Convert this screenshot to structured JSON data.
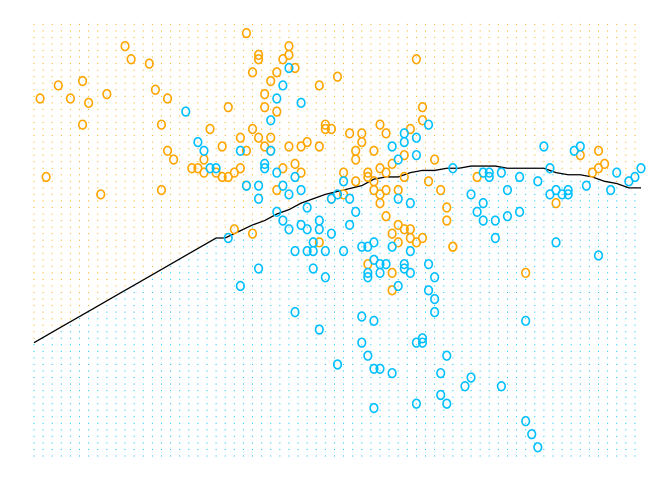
{
  "chart_data": {
    "type": "scatter",
    "title": "",
    "xlabel": "",
    "ylabel": "",
    "xlim": [
      0,
      100
    ],
    "ylim": [
      0,
      100
    ],
    "grid": false,
    "legend": "none",
    "marker": "o",
    "colors": {
      "class_0": "#FFA500",
      "class_1": "#00BFFF",
      "boundary": "#000000"
    },
    "background_grid": {
      "step": 1.5,
      "region_colors": {
        "above": "#FFA500",
        "below": "#00BFFF"
      }
    },
    "decision_boundary": {
      "x": [
        0,
        5,
        10,
        15,
        20,
        25,
        30,
        31.5,
        33,
        36,
        38,
        40,
        42,
        44,
        46,
        48,
        51,
        54,
        56,
        58,
        60,
        62,
        64,
        66,
        68,
        70,
        72,
        74,
        76,
        78,
        80,
        82,
        84,
        86,
        88,
        90,
        92,
        94,
        96,
        98,
        100
      ],
      "y": [
        26,
        30,
        34,
        38,
        42,
        46,
        50,
        50,
        51,
        53,
        54,
        55.5,
        56.5,
        58,
        59,
        60,
        61,
        62,
        63.5,
        64,
        64,
        65,
        65.5,
        65.5,
        66,
        66,
        66.5,
        66.5,
        66.5,
        66,
        66,
        66,
        66,
        65,
        64.5,
        64.5,
        64,
        63,
        62.5,
        61.5,
        61.5
      ]
    },
    "series": [
      {
        "class": 0,
        "color": "#FFA500",
        "points": [
          [
            1,
            82
          ],
          [
            2,
            64
          ],
          [
            4,
            85
          ],
          [
            6,
            82
          ],
          [
            8,
            86
          ],
          [
            8,
            76
          ],
          [
            9,
            81
          ],
          [
            11,
            60
          ],
          [
            12,
            83
          ],
          [
            15,
            94
          ],
          [
            16,
            91
          ],
          [
            19,
            90
          ],
          [
            20,
            84
          ],
          [
            21,
            76
          ],
          [
            21,
            61
          ],
          [
            22,
            70
          ],
          [
            22,
            82
          ],
          [
            23,
            68
          ],
          [
            26,
            66
          ],
          [
            27,
            66
          ],
          [
            28,
            68
          ],
          [
            28,
            65
          ],
          [
            29,
            75
          ],
          [
            30,
            65
          ],
          [
            31,
            64
          ],
          [
            31,
            71
          ],
          [
            32,
            64
          ],
          [
            32,
            80
          ],
          [
            33,
            52
          ],
          [
            33,
            65
          ],
          [
            34,
            73
          ],
          [
            34,
            66
          ],
          [
            35,
            97
          ],
          [
            35,
            62
          ],
          [
            35,
            70
          ],
          [
            36,
            75
          ],
          [
            36,
            88
          ],
          [
            36,
            51
          ],
          [
            37,
            92
          ],
          [
            37,
            73
          ],
          [
            37,
            91
          ],
          [
            38,
            71
          ],
          [
            38,
            83
          ],
          [
            38,
            80
          ],
          [
            39,
            86
          ],
          [
            39,
            73
          ],
          [
            39,
            70
          ],
          [
            40,
            79
          ],
          [
            40,
            61
          ],
          [
            40,
            88
          ],
          [
            41,
            91
          ],
          [
            41,
            66
          ],
          [
            42,
            92
          ],
          [
            42,
            71
          ],
          [
            42,
            94
          ],
          [
            43,
            89
          ],
          [
            43,
            67
          ],
          [
            44,
            71
          ],
          [
            44,
            65
          ],
          [
            45,
            72
          ],
          [
            47,
            49
          ],
          [
            47,
            85
          ],
          [
            47,
            71
          ],
          [
            48,
            75
          ],
          [
            48,
            76
          ],
          [
            49,
            75
          ],
          [
            49,
            59
          ],
          [
            50,
            87
          ],
          [
            51,
            65
          ],
          [
            51,
            60
          ],
          [
            52,
            74
          ],
          [
            53,
            68
          ],
          [
            53,
            70
          ],
          [
            53,
            63
          ],
          [
            54,
            72
          ],
          [
            54,
            74
          ],
          [
            55,
            64
          ],
          [
            55,
            65
          ],
          [
            55,
            44
          ],
          [
            56,
            61
          ],
          [
            56,
            70
          ],
          [
            56,
            63
          ],
          [
            57,
            76
          ],
          [
            57,
            58
          ],
          [
            57,
            66
          ],
          [
            57,
            60
          ],
          [
            58,
            55
          ],
          [
            58,
            61
          ],
          [
            58,
            74
          ],
          [
            58,
            65
          ],
          [
            59,
            38
          ],
          [
            59,
            67
          ],
          [
            59,
            42
          ],
          [
            59,
            51
          ],
          [
            60,
            49
          ],
          [
            60,
            53
          ],
          [
            60,
            61
          ],
          [
            61,
            69
          ],
          [
            61,
            64
          ],
          [
            61,
            52
          ],
          [
            62,
            75
          ],
          [
            62,
            50
          ],
          [
            62,
            52
          ],
          [
            63,
            91
          ],
          [
            63,
            49
          ],
          [
            64,
            80
          ],
          [
            64,
            77
          ],
          [
            64,
            50
          ],
          [
            65,
            63
          ],
          [
            66,
            68
          ],
          [
            67,
            61
          ],
          [
            68,
            57
          ],
          [
            68,
            54
          ],
          [
            69,
            48
          ],
          [
            69,
            48
          ],
          [
            73,
            64
          ],
          [
            81,
            42
          ],
          [
            86,
            58
          ],
          [
            90,
            69
          ],
          [
            92,
            65
          ],
          [
            93,
            70
          ],
          [
            93,
            66
          ],
          [
            94,
            67
          ]
        ]
      },
      {
        "class": 1,
        "color": "#00BFFF",
        "points": [
          [
            25,
            79
          ],
          [
            27,
            72
          ],
          [
            28,
            70
          ],
          [
            29,
            66
          ],
          [
            30,
            66
          ],
          [
            32,
            50
          ],
          [
            34,
            39
          ],
          [
            34,
            70
          ],
          [
            35,
            62
          ],
          [
            37,
            43
          ],
          [
            37,
            59
          ],
          [
            37,
            62
          ],
          [
            38,
            66
          ],
          [
            38,
            67
          ],
          [
            39,
            70
          ],
          [
            39,
            77
          ],
          [
            40,
            82
          ],
          [
            40,
            56
          ],
          [
            40,
            65
          ],
          [
            41,
            85
          ],
          [
            41,
            62
          ],
          [
            41,
            54
          ],
          [
            42,
            52
          ],
          [
            42,
            89
          ],
          [
            42,
            60
          ],
          [
            43,
            33
          ],
          [
            43,
            64
          ],
          [
            43,
            47
          ],
          [
            44,
            53
          ],
          [
            44,
            81
          ],
          [
            44,
            61
          ],
          [
            45,
            52
          ],
          [
            45,
            47
          ],
          [
            45,
            57
          ],
          [
            46,
            49
          ],
          [
            46,
            47
          ],
          [
            46,
            43
          ],
          [
            47,
            52
          ],
          [
            47,
            54
          ],
          [
            47,
            29
          ],
          [
            48,
            41
          ],
          [
            48,
            47
          ],
          [
            49,
            51
          ],
          [
            49,
            59
          ],
          [
            50,
            60
          ],
          [
            50,
            21
          ],
          [
            51,
            47
          ],
          [
            51,
            63
          ],
          [
            52,
            59
          ],
          [
            52,
            53
          ],
          [
            53,
            56
          ],
          [
            54,
            26
          ],
          [
            54,
            32
          ],
          [
            54,
            48
          ],
          [
            55,
            48
          ],
          [
            55,
            23
          ],
          [
            55,
            41
          ],
          [
            55,
            42
          ],
          [
            56,
            49
          ],
          [
            56,
            45
          ],
          [
            56,
            20
          ],
          [
            56,
            31
          ],
          [
            56,
            11
          ],
          [
            57,
            20
          ],
          [
            57,
            44
          ],
          [
            57,
            42
          ],
          [
            58,
            44
          ],
          [
            59,
            48
          ],
          [
            59,
            19
          ],
          [
            59,
            71
          ],
          [
            60,
            59
          ],
          [
            60,
            68
          ],
          [
            60,
            39
          ],
          [
            61,
            72
          ],
          [
            61,
            44
          ],
          [
            61,
            43
          ],
          [
            61,
            74
          ],
          [
            62,
            58
          ],
          [
            62,
            42
          ],
          [
            62,
            47
          ],
          [
            63,
            69
          ],
          [
            63,
            73
          ],
          [
            63,
            26
          ],
          [
            63,
            12
          ],
          [
            64,
            27
          ],
          [
            64,
            26
          ],
          [
            65,
            38
          ],
          [
            65,
            76
          ],
          [
            65,
            44
          ],
          [
            66,
            36
          ],
          [
            66,
            33
          ],
          [
            66,
            41
          ],
          [
            67,
            14
          ],
          [
            67,
            19
          ],
          [
            68,
            12
          ],
          [
            68,
            23
          ],
          [
            69,
            66
          ],
          [
            71,
            16
          ],
          [
            72,
            18
          ],
          [
            72,
            60
          ],
          [
            73,
            56
          ],
          [
            74,
            54
          ],
          [
            74,
            65
          ],
          [
            74,
            58
          ],
          [
            75,
            64
          ],
          [
            75,
            65
          ],
          [
            76,
            54
          ],
          [
            76,
            50
          ],
          [
            77,
            65
          ],
          [
            77,
            16
          ],
          [
            78,
            61
          ],
          [
            78,
            55
          ],
          [
            80,
            56
          ],
          [
            80,
            64
          ],
          [
            81,
            8
          ],
          [
            81,
            31
          ],
          [
            82,
            5
          ],
          [
            83,
            2
          ],
          [
            83,
            63
          ],
          [
            84,
            71
          ],
          [
            85,
            66
          ],
          [
            85,
            60
          ],
          [
            86,
            61
          ],
          [
            86,
            49
          ],
          [
            87,
            60
          ],
          [
            88,
            61
          ],
          [
            88,
            60
          ],
          [
            89,
            70
          ],
          [
            90,
            71
          ],
          [
            91,
            62
          ],
          [
            93,
            46
          ],
          [
            95,
            61
          ],
          [
            96,
            65
          ],
          [
            98,
            63
          ],
          [
            99,
            64
          ],
          [
            100,
            66
          ]
        ]
      }
    ]
  }
}
